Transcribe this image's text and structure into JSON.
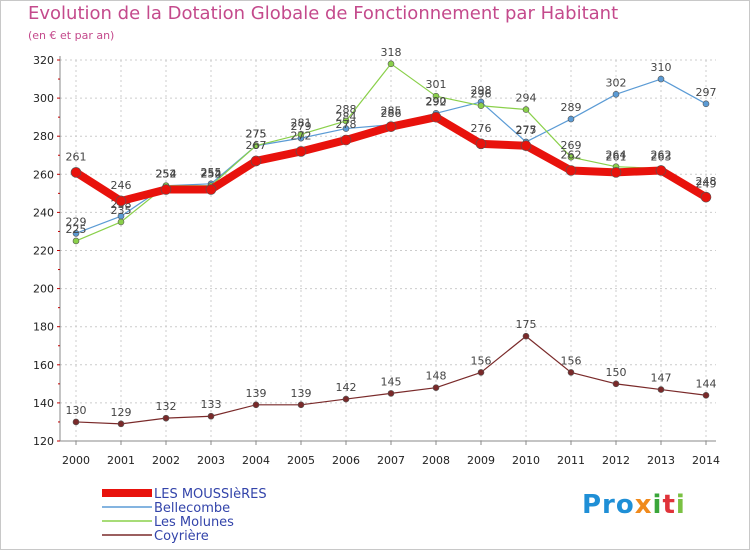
{
  "title": "Evolution de la Dotation Globale de Fonctionnement par Habitant",
  "subtitle": "(en € et par an)",
  "brand": {
    "parts": [
      "Pro",
      "x",
      "i",
      "t",
      "i"
    ],
    "colors": [
      "#1f8fd6",
      "#f08a1c",
      "#3aa63a",
      "#e0333a",
      "#7ac143"
    ]
  },
  "colors": {
    "title": "#c44a8c",
    "grid": "#cccccc",
    "axis": "#888888"
  },
  "chart_data": {
    "type": "line",
    "x": [
      2000,
      2001,
      2002,
      2003,
      2004,
      2005,
      2006,
      2007,
      2008,
      2009,
      2010,
      2011,
      2012,
      2013,
      2014
    ],
    "ylim": [
      120,
      320
    ],
    "yticks": [
      120,
      140,
      160,
      180,
      200,
      220,
      240,
      260,
      280,
      300,
      320
    ],
    "grid": true,
    "legend_position": "bottom-left",
    "series": [
      {
        "name": "Bellecombe",
        "color": "#5b9bd5",
        "values": [
          229,
          238,
          254,
          255,
          275,
          279,
          284,
          286,
          292,
          298,
          277,
          289,
          302,
          310,
          297
        ]
      },
      {
        "name": "Les Molunes",
        "color": "#8ad04a",
        "values": [
          225,
          235,
          254,
          254,
          275,
          281,
          288,
          318,
          301,
          296,
          294,
          269,
          264,
          263,
          249
        ]
      },
      {
        "name": "LES MOUSSIèRES",
        "color": "#e8120c",
        "values": [
          261,
          246,
          252,
          252,
          267,
          272,
          278,
          285,
          290,
          276,
          275,
          262,
          261,
          262,
          248
        ]
      },
      {
        "name": "Coyrière",
        "color": "#7a2a2a",
        "values": [
          130,
          129,
          132,
          133,
          139,
          139,
          142,
          145,
          148,
          156,
          175,
          156,
          150,
          147,
          144
        ]
      }
    ],
    "legend_order": [
      "LES MOUSSIèRES",
      "Bellecombe",
      "Les Molunes",
      "Coyrière"
    ]
  }
}
